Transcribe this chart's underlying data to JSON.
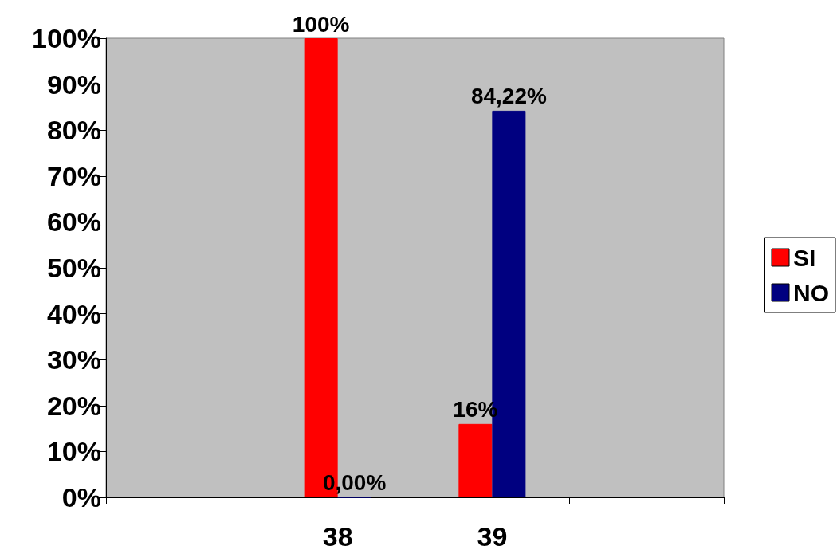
{
  "chart_data": {
    "type": "bar",
    "categories": [
      null,
      "38",
      "39",
      null
    ],
    "series": [
      {
        "name": "SI",
        "color": "#ff0000",
        "values": [
          null,
          100,
          16,
          null
        ],
        "value_labels": [
          null,
          "100%",
          "16%",
          null
        ]
      },
      {
        "name": "NO",
        "color": "#000080",
        "values": [
          null,
          0,
          84.22,
          null
        ],
        "value_labels": [
          null,
          "0,00%",
          "84,22%",
          null
        ]
      }
    ],
    "ylim": [
      0,
      100
    ],
    "yticks": [
      {
        "value": 0,
        "label": "0%"
      },
      {
        "value": 10,
        "label": "10%"
      },
      {
        "value": 20,
        "label": "20%"
      },
      {
        "value": 30,
        "label": "30%"
      },
      {
        "value": 40,
        "label": "40%"
      },
      {
        "value": 50,
        "label": "50%"
      },
      {
        "value": 60,
        "label": "60%"
      },
      {
        "value": 70,
        "label": "70%"
      },
      {
        "value": 80,
        "label": "80%"
      },
      {
        "value": 90,
        "label": "90%"
      },
      {
        "value": 100,
        "label": "100%"
      }
    ],
    "grid": false,
    "legend": "right"
  }
}
